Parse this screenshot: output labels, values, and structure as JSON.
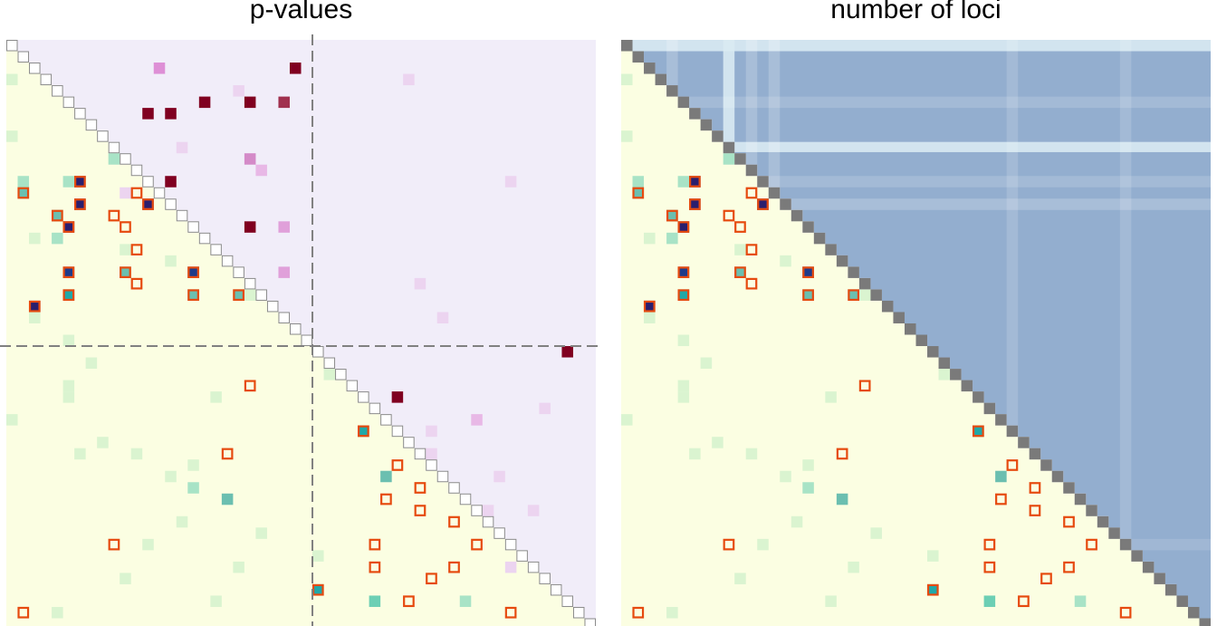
{
  "chart_data": [
    {
      "type": "heatmap",
      "title": "p-values",
      "n": 52,
      "blocks": [
        0,
        27,
        52
      ],
      "lower_base_color": "#fbfee2",
      "upper_base_color": "#f1edf9",
      "lower_cells": [
        [
          12,
          1,
          "#a8e3c6"
        ],
        [
          12,
          5,
          "#a8e3c6"
        ],
        [
          15,
          4,
          "#a8e3c6"
        ],
        [
          17,
          4,
          "#a8e3c6"
        ],
        [
          17,
          2,
          "#daf4d0"
        ],
        [
          18,
          10,
          "#daf4d0"
        ],
        [
          10,
          9,
          "#a8e3c6"
        ],
        [
          36,
          11,
          "#daf4d0"
        ],
        [
          37,
          16,
          "#daf4d0"
        ],
        [
          39,
          16,
          "#a8e3c6"
        ],
        [
          38,
          14,
          "#daf4d0"
        ],
        [
          49,
          32,
          "#6ccfb4"
        ],
        [
          49,
          40,
          "#a8e3c6"
        ],
        [
          49,
          18,
          "#daf4d0"
        ],
        [
          47,
          10,
          "#daf4d0"
        ],
        [
          44,
          12,
          "#daf4d0"
        ],
        [
          30,
          5,
          "#daf4d0"
        ],
        [
          31,
          5,
          "#daf4d0"
        ],
        [
          28,
          7,
          "#daf4d0"
        ],
        [
          22,
          21,
          "#daf4d0"
        ],
        [
          33,
          0,
          "#daf4d0"
        ],
        [
          35,
          8,
          "#daf4d0"
        ],
        [
          36,
          6,
          "#daf4d0"
        ],
        [
          31,
          18,
          "#daf4d0"
        ],
        [
          42,
          15,
          "#daf4d0"
        ],
        [
          46,
          20,
          "#daf4d0"
        ],
        [
          50,
          4,
          "#daf4d0"
        ],
        [
          29,
          28,
          "#daf4d0"
        ],
        [
          19,
          14,
          "#daf4d0"
        ],
        [
          20,
          16,
          "#daf4d0"
        ],
        [
          8,
          0,
          "#daf4d0"
        ],
        [
          3,
          0,
          "#daf4d0"
        ],
        [
          24,
          2,
          "#daf4d0"
        ],
        [
          26,
          5,
          "#daf4d0"
        ],
        [
          43,
          22,
          "#daf4d0"
        ],
        [
          45,
          27,
          "#daf4d0"
        ]
      ],
      "upper_cells": [
        [
          2,
          13,
          "#de8fd6"
        ],
        [
          2,
          25,
          "#800020"
        ],
        [
          5,
          17,
          "#800020"
        ],
        [
          5,
          21,
          "#800020"
        ],
        [
          5,
          24,
          "#a0304e"
        ],
        [
          6,
          12,
          "#800020"
        ],
        [
          6,
          14,
          "#800020"
        ],
        [
          10,
          21,
          "#d48ac8"
        ],
        [
          11,
          22,
          "#e8b8e6"
        ],
        [
          12,
          14,
          "#800020"
        ],
        [
          16,
          21,
          "#800020"
        ],
        [
          16,
          24,
          "#e0a0da"
        ],
        [
          20,
          24,
          "#e0a0da"
        ],
        [
          27,
          49,
          "#800020"
        ],
        [
          31,
          34,
          "#800020"
        ],
        [
          33,
          41,
          "#e8b8e6"
        ],
        [
          34,
          37,
          "#ecd4f0"
        ],
        [
          36,
          37,
          "#ecd4f0"
        ],
        [
          38,
          43,
          "#ecd4f0"
        ],
        [
          41,
          42,
          "#ecd4f0"
        ],
        [
          41,
          46,
          "#ecd4f0"
        ],
        [
          9,
          15,
          "#ecd4f0"
        ],
        [
          13,
          10,
          "#ecd4f0"
        ],
        [
          4,
          20,
          "#ecd4f0"
        ],
        [
          3,
          35,
          "#ecd4f0"
        ],
        [
          21,
          36,
          "#ecd4f0"
        ],
        [
          24,
          38,
          "#ecd4f0"
        ],
        [
          12,
          44,
          "#ecd4f0"
        ],
        [
          32,
          47,
          "#ecd4f0"
        ],
        [
          46,
          44,
          "#ecd4f0"
        ]
      ],
      "dark_cells": [
        [
          12,
          6,
          "#2a1e6e"
        ],
        [
          14,
          6,
          "#2a1e6e"
        ],
        [
          14,
          12,
          "#2a1e6e"
        ],
        [
          16,
          5,
          "#2a1e6e"
        ],
        [
          20,
          5,
          "#1e3a8a"
        ],
        [
          20,
          16,
          "#1e3a8a"
        ],
        [
          23,
          2,
          "#2a1e6e"
        ],
        [
          22,
          5,
          "#20a8a8"
        ],
        [
          22,
          16,
          "#6bbfb0"
        ],
        [
          22,
          20,
          "#6bbfb0"
        ],
        [
          13,
          1,
          "#6bbfb0"
        ],
        [
          15,
          4,
          "#6bbfb0"
        ],
        [
          20,
          10,
          "#6bbfb0"
        ],
        [
          34,
          31,
          "#20a8a8"
        ],
        [
          40,
          19,
          "#6bbfb0"
        ],
        [
          38,
          33,
          "#6bbfb0"
        ],
        [
          48,
          27,
          "#20a8a8"
        ]
      ],
      "significant_cells": [
        [
          13,
          1
        ],
        [
          12,
          6
        ],
        [
          13,
          11
        ],
        [
          14,
          6
        ],
        [
          14,
          12
        ],
        [
          15,
          4
        ],
        [
          15,
          9
        ],
        [
          16,
          5
        ],
        [
          16,
          10
        ],
        [
          18,
          11
        ],
        [
          20,
          5
        ],
        [
          20,
          10
        ],
        [
          20,
          16
        ],
        [
          21,
          11
        ],
        [
          22,
          5
        ],
        [
          22,
          16
        ],
        [
          22,
          20
        ],
        [
          23,
          2
        ],
        [
          30,
          21
        ],
        [
          34,
          31
        ],
        [
          36,
          19
        ],
        [
          37,
          34
        ],
        [
          39,
          36
        ],
        [
          40,
          33
        ],
        [
          41,
          36
        ],
        [
          42,
          39
        ],
        [
          44,
          32
        ],
        [
          44,
          9
        ],
        [
          44,
          41
        ],
        [
          46,
          32
        ],
        [
          46,
          39
        ],
        [
          47,
          37
        ],
        [
          48,
          27
        ],
        [
          49,
          35
        ],
        [
          50,
          1
        ],
        [
          50,
          44
        ]
      ]
    },
    {
      "type": "heatmap",
      "title": "number of loci",
      "n": 52,
      "upper_fill_color": "#93aecf",
      "light_band_color": "#d9eaf2"
    }
  ]
}
